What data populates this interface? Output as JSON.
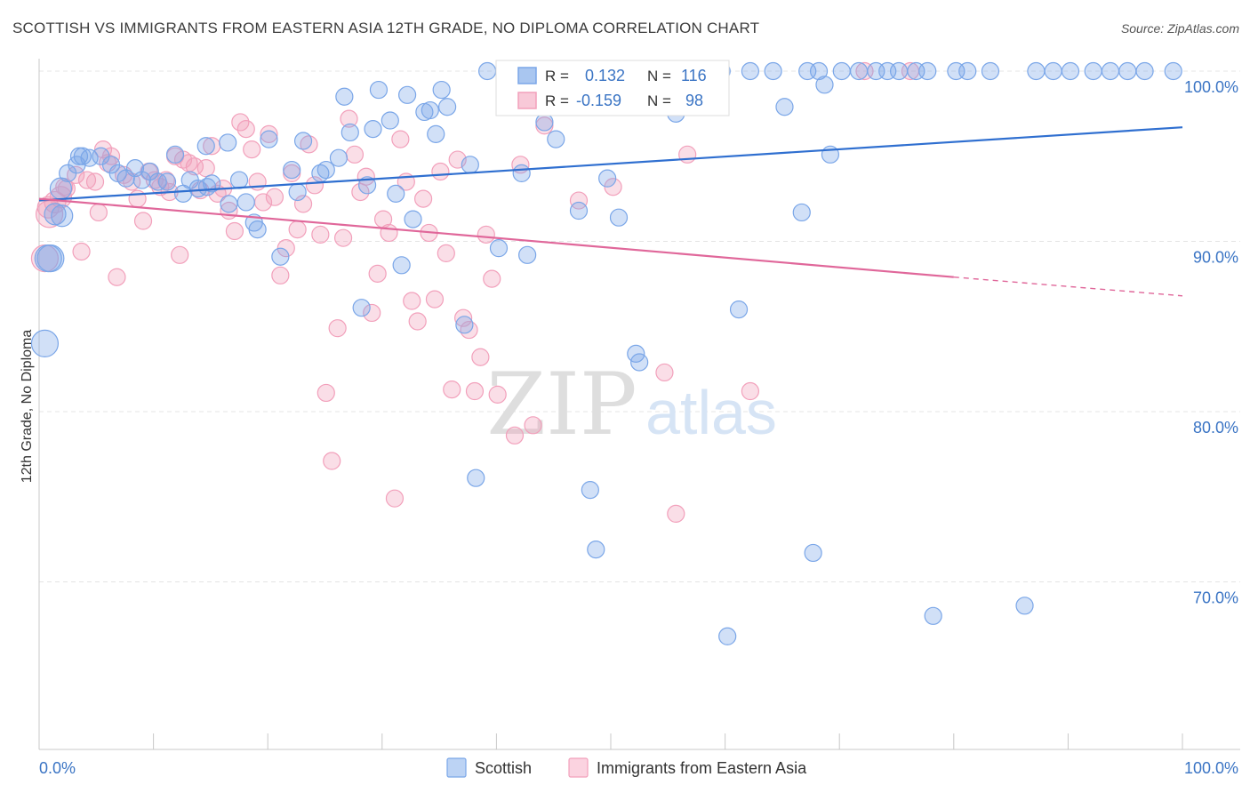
{
  "title": "SCOTTISH VS IMMIGRANTS FROM EASTERN ASIA 12TH GRADE, NO DIPLOMA CORRELATION CHART",
  "source": "Source: ZipAtlas.com",
  "watermark": {
    "zip": "ZIP",
    "atlas": "atlas"
  },
  "colors": {
    "scottish": "#7aa6e8",
    "scottish_line": "#2f6fd0",
    "asia": "#f2a0bb",
    "asia_line": "#e0679a",
    "tick_label": "#3a74c4"
  },
  "stats": {
    "r_label": "R =",
    "n_label": "N =",
    "scottish": {
      "r": "0.132",
      "n": "116"
    },
    "asia": {
      "r": "-0.159",
      "n": "98"
    }
  },
  "chart_data": {
    "type": "scatter",
    "title": "SCOTTISH VS IMMIGRANTS FROM EASTERN ASIA 12TH GRADE, NO DIPLOMA CORRELATION CHART",
    "xlabel": "",
    "ylabel": "12th Grade, No Diploma",
    "xlim": [
      0,
      100
    ],
    "ylim": [
      60.5,
      101.5
    ],
    "x_tick_labels": [
      "0.0%",
      "100.0%"
    ],
    "y_ticks": [
      70,
      80,
      90,
      100
    ],
    "y_tick_labels": [
      "70.0%",
      "80.0%",
      "90.0%",
      "100.0%"
    ],
    "grid": true,
    "legend_position": "bottom",
    "series": [
      {
        "name": "Scottish",
        "trend": {
          "x0": 0,
          "y0": 92.4,
          "x1": 100,
          "y1": 96.7
        },
        "points": [
          [
            0.5,
            84.0
          ],
          [
            0.8,
            89.0
          ],
          [
            1.4,
            91.6
          ],
          [
            1.9,
            93.1
          ],
          [
            2.5,
            94.0
          ],
          [
            3.3,
            94.5
          ],
          [
            3.8,
            95.0
          ],
          [
            4.4,
            94.9
          ],
          [
            5.4,
            95.0
          ],
          [
            6.3,
            94.5
          ],
          [
            6.9,
            94.0
          ],
          [
            7.6,
            93.7
          ],
          [
            8.4,
            94.3
          ],
          [
            9.0,
            93.6
          ],
          [
            9.7,
            94.1
          ],
          [
            10.4,
            93.5
          ],
          [
            11.2,
            93.5
          ],
          [
            11.9,
            95.1
          ],
          [
            12.6,
            92.8
          ],
          [
            13.2,
            93.6
          ],
          [
            13.9,
            93.1
          ],
          [
            14.7,
            93.2
          ],
          [
            14.6,
            95.6
          ],
          [
            15.1,
            93.4
          ],
          [
            16.6,
            92.2
          ],
          [
            16.5,
            95.8
          ],
          [
            17.5,
            93.6
          ],
          [
            18.1,
            92.3
          ],
          [
            18.8,
            91.1
          ],
          [
            19.1,
            90.7
          ],
          [
            20.1,
            96.0
          ],
          [
            21.1,
            89.1
          ],
          [
            22.1,
            94.2
          ],
          [
            22.6,
            92.9
          ],
          [
            23.1,
            95.9
          ],
          [
            24.6,
            94.0
          ],
          [
            25.1,
            94.2
          ],
          [
            26.2,
            94.9
          ],
          [
            26.7,
            98.5
          ],
          [
            27.2,
            96.4
          ],
          [
            28.2,
            86.1
          ],
          [
            28.7,
            93.3
          ],
          [
            29.2,
            96.6
          ],
          [
            29.7,
            98.9
          ],
          [
            30.7,
            97.1
          ],
          [
            31.2,
            92.8
          ],
          [
            31.7,
            88.6
          ],
          [
            32.2,
            98.6
          ],
          [
            32.7,
            91.3
          ],
          [
            33.7,
            97.6
          ],
          [
            34.2,
            97.7
          ],
          [
            34.7,
            96.3
          ],
          [
            35.2,
            98.9
          ],
          [
            35.7,
            97.9
          ],
          [
            37.2,
            85.1
          ],
          [
            37.7,
            94.5
          ],
          [
            38.2,
            76.1
          ],
          [
            39.2,
            100.0
          ],
          [
            40.2,
            89.6
          ],
          [
            41.2,
            100.0
          ],
          [
            42.2,
            94.0
          ],
          [
            42.7,
            89.2
          ],
          [
            43.2,
            100.0
          ],
          [
            44.2,
            97.0
          ],
          [
            45.2,
            96.0
          ],
          [
            46.2,
            100.0
          ],
          [
            47.2,
            91.8
          ],
          [
            47.7,
            100.0
          ],
          [
            48.2,
            75.4
          ],
          [
            48.7,
            71.9
          ],
          [
            49.7,
            93.7
          ],
          [
            50.7,
            91.4
          ],
          [
            52.2,
            83.4
          ],
          [
            52.5,
            82.9
          ],
          [
            53.7,
            100.0
          ],
          [
            54.2,
            100.0
          ],
          [
            55.7,
            97.5
          ],
          [
            56.2,
            100.0
          ],
          [
            57.2,
            100.0
          ],
          [
            58.2,
            98.6
          ],
          [
            58.7,
            100.0
          ],
          [
            59.7,
            100.0
          ],
          [
            60.2,
            66.8
          ],
          [
            61.2,
            86.0
          ],
          [
            62.2,
            100.0
          ],
          [
            64.2,
            100.0
          ],
          [
            65.2,
            97.9
          ],
          [
            66.7,
            91.7
          ],
          [
            67.2,
            100.0
          ],
          [
            67.7,
            71.7
          ],
          [
            68.2,
            100.0
          ],
          [
            68.7,
            99.2
          ],
          [
            69.2,
            95.1
          ],
          [
            70.2,
            100.0
          ],
          [
            71.7,
            100.0
          ],
          [
            73.2,
            100.0
          ],
          [
            74.2,
            100.0
          ],
          [
            75.2,
            100.0
          ],
          [
            76.7,
            100.0
          ],
          [
            77.7,
            100.0
          ],
          [
            78.2,
            68.0
          ],
          [
            80.2,
            100.0
          ],
          [
            81.2,
            100.0
          ],
          [
            83.2,
            100.0
          ],
          [
            86.2,
            68.6
          ],
          [
            87.2,
            100.0
          ],
          [
            88.7,
            100.0
          ],
          [
            90.2,
            100.0
          ],
          [
            92.2,
            100.0
          ],
          [
            93.7,
            100.0
          ],
          [
            95.2,
            100.0
          ],
          [
            96.7,
            100.0
          ],
          [
            99.2,
            100.0
          ],
          [
            1.0,
            89.0
          ],
          [
            2.0,
            91.5
          ],
          [
            3.5,
            95.0
          ]
        ]
      },
      {
        "name": "Immigrants from Eastern Asia",
        "trend": {
          "x0": 0,
          "y0": 92.5,
          "x1": 80,
          "y1": 87.9,
          "dash_to_x": 100,
          "dash_to_y": 86.8
        },
        "points": [
          [
            0.5,
            89.0
          ],
          [
            0.9,
            91.6
          ],
          [
            1.4,
            92.3
          ],
          [
            1.9,
            92.6
          ],
          [
            2.4,
            93.1
          ],
          [
            3.2,
            93.9
          ],
          [
            3.7,
            89.4
          ],
          [
            4.2,
            93.6
          ],
          [
            4.9,
            93.5
          ],
          [
            5.2,
            91.7
          ],
          [
            5.6,
            95.4
          ],
          [
            6.0,
            94.6
          ],
          [
            6.3,
            95.0
          ],
          [
            6.8,
            87.9
          ],
          [
            7.4,
            93.9
          ],
          [
            8.1,
            93.5
          ],
          [
            8.6,
            92.5
          ],
          [
            9.1,
            91.2
          ],
          [
            9.6,
            94.1
          ],
          [
            10.1,
            93.6
          ],
          [
            10.6,
            93.2
          ],
          [
            11.1,
            93.6
          ],
          [
            11.4,
            92.9
          ],
          [
            11.9,
            95.0
          ],
          [
            12.3,
            89.2
          ],
          [
            12.6,
            94.8
          ],
          [
            13.1,
            94.6
          ],
          [
            13.6,
            94.4
          ],
          [
            14.1,
            93.0
          ],
          [
            14.6,
            94.3
          ],
          [
            15.1,
            95.6
          ],
          [
            15.6,
            92.8
          ],
          [
            16.1,
            93.1
          ],
          [
            16.6,
            91.8
          ],
          [
            17.1,
            90.6
          ],
          [
            17.6,
            97.0
          ],
          [
            18.1,
            96.6
          ],
          [
            18.6,
            95.4
          ],
          [
            19.1,
            93.5
          ],
          [
            19.6,
            92.3
          ],
          [
            20.1,
            96.3
          ],
          [
            20.6,
            92.6
          ],
          [
            21.1,
            88.0
          ],
          [
            21.6,
            89.6
          ],
          [
            22.1,
            94.0
          ],
          [
            22.6,
            90.7
          ],
          [
            23.1,
            92.2
          ],
          [
            23.6,
            95.7
          ],
          [
            24.1,
            93.3
          ],
          [
            24.6,
            90.4
          ],
          [
            25.1,
            81.1
          ],
          [
            25.6,
            77.1
          ],
          [
            26.1,
            84.9
          ],
          [
            26.6,
            90.2
          ],
          [
            27.1,
            97.2
          ],
          [
            27.6,
            95.1
          ],
          [
            28.1,
            92.9
          ],
          [
            28.6,
            93.8
          ],
          [
            29.1,
            85.8
          ],
          [
            29.6,
            88.1
          ],
          [
            30.1,
            91.3
          ],
          [
            30.6,
            90.5
          ],
          [
            31.1,
            74.9
          ],
          [
            31.6,
            96.0
          ],
          [
            32.1,
            93.5
          ],
          [
            32.6,
            86.5
          ],
          [
            33.1,
            85.3
          ],
          [
            33.6,
            92.5
          ],
          [
            34.1,
            90.5
          ],
          [
            34.6,
            86.6
          ],
          [
            35.1,
            94.1
          ],
          [
            35.6,
            89.3
          ],
          [
            36.1,
            81.3
          ],
          [
            36.6,
            94.8
          ],
          [
            37.1,
            85.5
          ],
          [
            37.6,
            84.8
          ],
          [
            38.1,
            81.2
          ],
          [
            38.6,
            83.2
          ],
          [
            39.1,
            90.4
          ],
          [
            39.6,
            87.8
          ],
          [
            40.1,
            81.0
          ],
          [
            41.6,
            78.6
          ],
          [
            42.1,
            94.5
          ],
          [
            43.2,
            79.2
          ],
          [
            44.2,
            96.8
          ],
          [
            44.6,
            99.7
          ],
          [
            47.2,
            92.4
          ],
          [
            50.2,
            93.2
          ],
          [
            54.7,
            82.3
          ],
          [
            55.7,
            74.0
          ],
          [
            56.7,
            95.1
          ],
          [
            58.2,
            100.0
          ],
          [
            62.2,
            81.2
          ],
          [
            72.2,
            100.0
          ],
          [
            76.2,
            100.0
          ],
          [
            41.0,
            100.0
          ],
          [
            0.8,
            92.0
          ],
          [
            2.2,
            93.2
          ]
        ]
      }
    ]
  },
  "legend": {
    "items": [
      "Scottish",
      "Immigrants from Eastern Asia"
    ]
  }
}
